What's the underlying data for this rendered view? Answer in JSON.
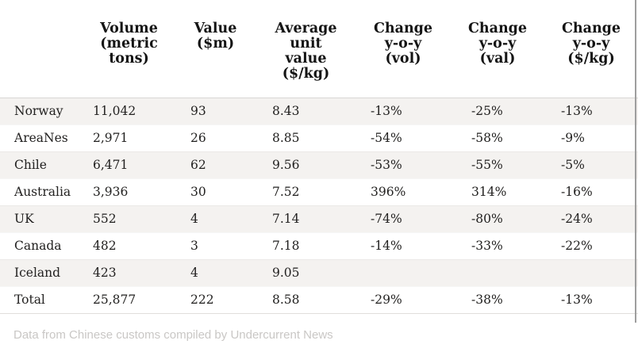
{
  "chart_data": {
    "type": "table",
    "columns": [
      "",
      "Volume (metric tons)",
      "Value ($m)",
      "Average unit value ($/kg)",
      "Change y-o-y (vol)",
      "Change y-o-y (val)",
      "Change y-o-y ($/kg)"
    ],
    "header_lines": [
      "",
      "Volume\n(metric\ntons)",
      "Value\n($m)",
      "Average\nunit\nvalue\n($/kg)",
      "Change\ny-o-y\n(vol)",
      "Change\ny-o-y\n(val)",
      "Change\ny-o-y\n($/kg)"
    ],
    "rows": [
      {
        "label": "Norway",
        "values": [
          "11,042",
          "93",
          "8.43",
          "-13%",
          "-25%",
          "-13%"
        ]
      },
      {
        "label": "AreaNes",
        "values": [
          "2,971",
          "26",
          "8.85",
          "-54%",
          "-58%",
          "-9%"
        ]
      },
      {
        "label": "Chile",
        "values": [
          "6,471",
          "62",
          "9.56",
          "-53%",
          "-55%",
          "-5%"
        ]
      },
      {
        "label": "Australia",
        "values": [
          "3,936",
          "30",
          "7.52",
          "396%",
          "314%",
          "-16%"
        ]
      },
      {
        "label": "UK",
        "values": [
          "552",
          "4",
          "7.14",
          "-74%",
          "-80%",
          "-24%"
        ]
      },
      {
        "label": "Canada",
        "values": [
          "482",
          "3",
          "7.18",
          "-14%",
          "-33%",
          "-22%"
        ]
      },
      {
        "label": "Iceland",
        "values": [
          "423",
          "4",
          "9.05",
          "",
          "",
          ""
        ]
      },
      {
        "label": "Total",
        "values": [
          "25,877",
          "222",
          "8.58",
          "-29%",
          "-38%",
          "-13%"
        ]
      }
    ],
    "source_note": "Data from Chinese customs compiled by Undercurrent News"
  },
  "colors": {
    "row_stripe": "#f4f2f0",
    "header_border": "#d8d6d4",
    "bottom_border": "#e0dedc",
    "footer_text": "#c9c7c5",
    "edge_line": "#9e9e9e",
    "text": "#1f1f1f"
  }
}
